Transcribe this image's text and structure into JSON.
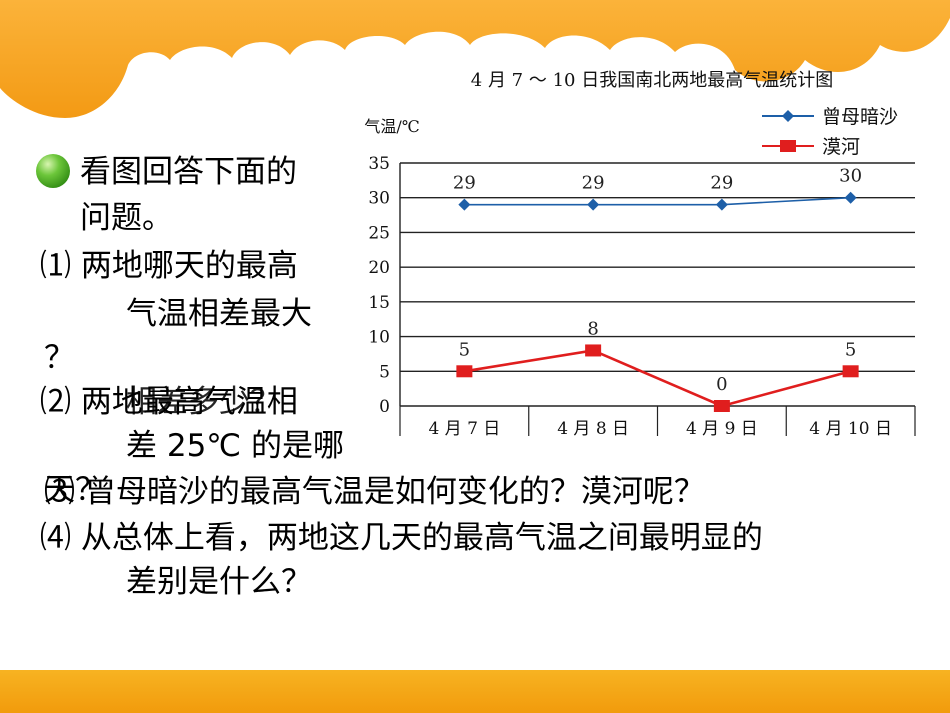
{
  "colors": {
    "accent_orange": "#f7a92a",
    "series1": "#1d5fa8",
    "series2": "#e01e1e"
  },
  "questions": {
    "intro": [
      "看图回答下面的",
      "问题。"
    ],
    "q1": [
      "⑴ 两地哪天的最高",
      "气温相差最大",
      "？"
    ],
    "q2_overlap_a": "⑵ 两地最高气温相",
    "q2_overlap_b": "相差多少？",
    "q2_rest": [
      "差 25℃ 的是哪",
      "天？"
    ],
    "q3": "⑶ 曾母暗沙的最高气温是如何变化的？漠河呢？",
    "q4": [
      "⑷ 从总体上看，两地这几天的最高气温之间最明显的",
      "差别是什么？"
    ]
  },
  "chart_data": {
    "type": "line",
    "title": "4 月 7 ～ 10 日我国南北两地最高气温统计图",
    "ylabel": "气温/℃",
    "xlabel": "",
    "categories": [
      "4 月 7 日",
      "4 月 8 日",
      "4 月 9 日",
      "4 月 10 日"
    ],
    "ylim": [
      0,
      35
    ],
    "yticks": [
      0,
      5,
      10,
      15,
      20,
      25,
      30,
      35
    ],
    "grid": "horizontal",
    "legend_position": "top-right",
    "series": [
      {
        "name": "曾母暗沙",
        "values": [
          29,
          29,
          29,
          30
        ],
        "color": "#1d5fa8",
        "marker": "diamond"
      },
      {
        "name": "漠河",
        "values": [
          5,
          8,
          0,
          5
        ],
        "color": "#e01e1e",
        "marker": "square"
      }
    ]
  }
}
